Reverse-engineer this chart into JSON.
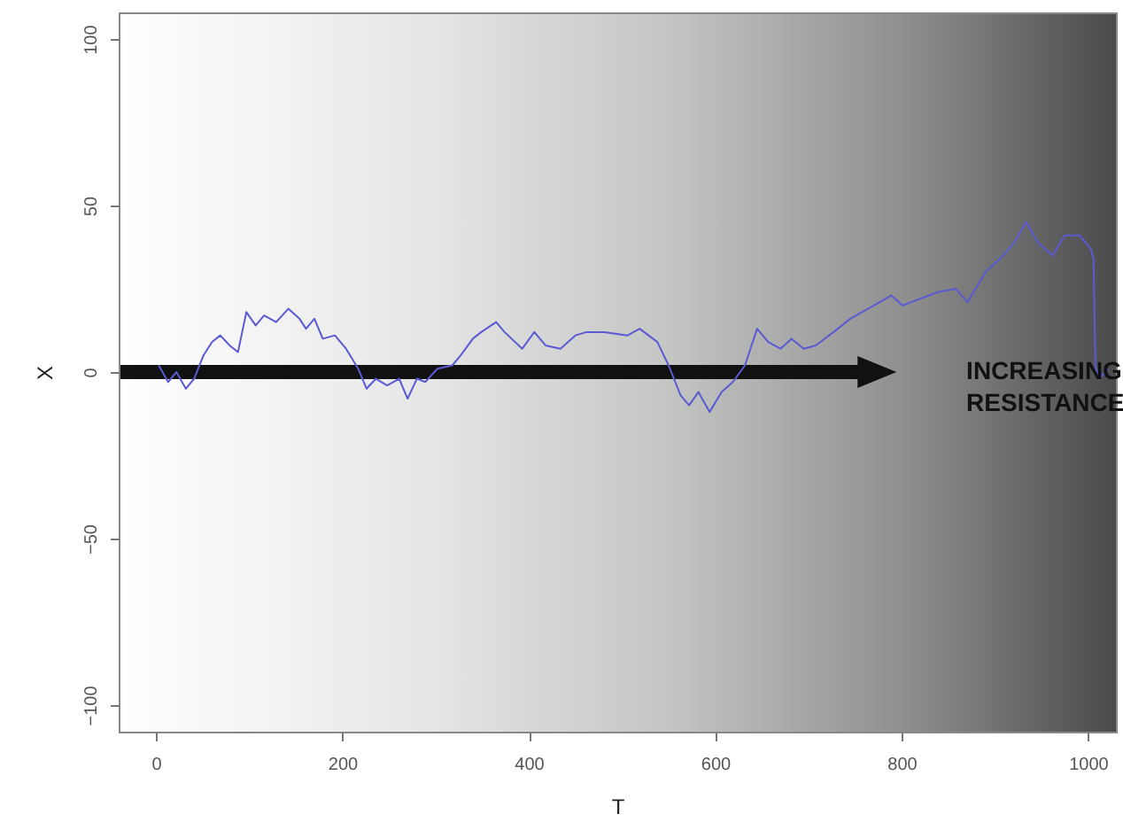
{
  "chart_data": {
    "type": "line",
    "xlabel": "T",
    "ylabel": "X",
    "xlim": [
      -40,
      1030
    ],
    "ylim": [
      -108,
      108
    ],
    "xticks": [
      0,
      200,
      400,
      600,
      800,
      1000
    ],
    "yticks": [
      -100,
      -50,
      0,
      50,
      100
    ],
    "grid": false,
    "marker": "none",
    "line_style": "solid",
    "annotations": [
      "INCREASING RESISTANCE"
    ],
    "series": [
      {
        "color": "#5a5ad2",
        "x": [
          3,
          13,
          22,
          32,
          41,
          51,
          60,
          69,
          79,
          88,
          97,
          107,
          116,
          129,
          142,
          154,
          161,
          170,
          179,
          192,
          204,
          217,
          226,
          236,
          248,
          261,
          270,
          280,
          289,
          302,
          318,
          327,
          340,
          349,
          365,
          374,
          393,
          406,
          418,
          434,
          450,
          462,
          475,
          481,
          506,
          519,
          538,
          550,
          563,
          572,
          582,
          594,
          607,
          619,
          632,
          645,
          657,
          670,
          682,
          695,
          708,
          727,
          745,
          764,
          789,
          801,
          820,
          839,
          858,
          871,
          890,
          909,
          921,
          934,
          946,
          962,
          975,
          991,
          1003,
          1006,
          1008,
          1012,
          1022
        ],
        "values": [
          2,
          -3,
          0,
          -5,
          -2,
          5,
          9,
          11,
          8,
          6,
          18,
          14,
          17,
          15,
          19,
          16,
          13,
          16,
          10,
          11,
          7,
          1,
          -5,
          -2,
          -4,
          -2,
          -8,
          -2,
          -3,
          1,
          2,
          5,
          10,
          12,
          15,
          12,
          7,
          12,
          8,
          7,
          11,
          12,
          12,
          12,
          11,
          13,
          9,
          2,
          -7,
          -10,
          -6,
          -12,
          -6,
          -3,
          2,
          13,
          9,
          7,
          10,
          7,
          8,
          12,
          16,
          19,
          23,
          20,
          22,
          24,
          25,
          21,
          30,
          35,
          39,
          45,
          39,
          35,
          41,
          41,
          37,
          34,
          2,
          -2,
          1
        ]
      }
    ]
  }
}
